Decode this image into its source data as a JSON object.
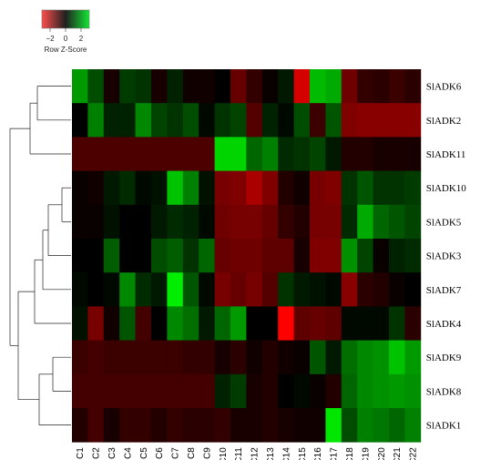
{
  "chart_data": {
    "type": "heatmap",
    "columns": [
      "C1",
      "C2",
      "C3",
      "C4",
      "C5",
      "C6",
      "C7",
      "C8",
      "C9",
      "C10",
      "C11",
      "C12",
      "C13",
      "C14",
      "C15",
      "C16",
      "C17",
      "C18",
      "C19",
      "C20",
      "C21",
      "C22"
    ],
    "rows": [
      "SlADK6",
      "SlADK2",
      "SlADK11",
      "SlADK10",
      "SlADK5",
      "SlADK3",
      "SlADK7",
      "SlADK4",
      "SlADK9",
      "SlADK8",
      "SlADK1"
    ],
    "values": [
      [
        1.8,
        0.9,
        -0.3,
        0.7,
        0.6,
        -0.3,
        0.4,
        -0.2,
        -0.2,
        0.0,
        -1.2,
        -0.6,
        -0.1,
        0.3,
        -2.5,
        2.2,
        2.0,
        -1.3,
        -0.6,
        -0.5,
        -0.7,
        -0.5
      ],
      [
        0.0,
        1.5,
        0.4,
        0.4,
        1.6,
        0.8,
        0.6,
        0.9,
        0.1,
        0.6,
        0.8,
        -1.0,
        0.4,
        0.1,
        0.9,
        -0.7,
        1.0,
        -1.5,
        -1.6,
        -1.6,
        -1.6,
        -1.6
      ],
      [
        -0.9,
        -0.9,
        -0.9,
        -0.9,
        -0.9,
        -0.9,
        -0.9,
        -0.9,
        -0.9,
        2.5,
        2.5,
        1.2,
        1.5,
        0.5,
        0.6,
        0.8,
        0.3,
        -0.4,
        -0.4,
        -0.3,
        -0.3,
        -0.3
      ],
      [
        -0.1,
        -0.2,
        0.3,
        0.5,
        0.1,
        0.2,
        2.3,
        1.5,
        0.2,
        -1.4,
        -1.5,
        -2.0,
        -1.5,
        -0.4,
        -0.2,
        -1.4,
        -1.5,
        0.6,
        1.0,
        0.6,
        0.6,
        0.7
      ],
      [
        -0.1,
        -0.1,
        0.2,
        0.0,
        0.0,
        0.3,
        0.5,
        0.4,
        0.1,
        -1.3,
        -1.4,
        -1.4,
        -1.2,
        -0.6,
        -0.4,
        -1.4,
        -1.4,
        0.5,
        2.0,
        1.2,
        1.0,
        0.8
      ],
      [
        0.0,
        0.0,
        1.1,
        0.0,
        0.0,
        0.9,
        1.1,
        0.6,
        1.2,
        -1.2,
        -1.3,
        -1.3,
        -1.1,
        -1.1,
        -0.3,
        -1.5,
        -1.5,
        1.7,
        0.8,
        -0.1,
        0.4,
        0.5
      ],
      [
        0.1,
        0.0,
        0.1,
        1.6,
        0.5,
        0.3,
        2.8,
        1.0,
        0.1,
        -1.4,
        -1.2,
        -1.4,
        -1.0,
        0.6,
        0.3,
        0.2,
        0.1,
        -1.6,
        -0.5,
        -0.4,
        -0.1,
        0.0
      ],
      [
        0.2,
        -1.4,
        -0.2,
        1.0,
        -0.8,
        0.0,
        1.6,
        1.3,
        0.3,
        1.2,
        1.8,
        0.0,
        0.0,
        -3.0,
        -1.1,
        -1.2,
        -1.1,
        0.1,
        0.1,
        0.1,
        0.6,
        -0.5
      ],
      [
        -0.7,
        -0.8,
        -0.7,
        -0.7,
        -0.7,
        -0.7,
        -0.7,
        -0.6,
        -0.6,
        -0.3,
        -0.5,
        -0.2,
        -0.4,
        -0.2,
        -0.1,
        1.0,
        0.3,
        1.3,
        1.6,
        1.7,
        2.3,
        1.8
      ],
      [
        -0.8,
        -0.8,
        -0.8,
        -0.8,
        -0.8,
        -0.8,
        -0.8,
        -0.8,
        -0.8,
        0.4,
        0.7,
        -0.3,
        -0.4,
        0.0,
        0.1,
        -0.1,
        -0.4,
        1.2,
        1.6,
        1.7,
        1.8,
        1.7
      ],
      [
        -0.4,
        -0.8,
        -0.3,
        -0.6,
        -0.6,
        -0.4,
        -0.6,
        -0.5,
        -0.5,
        -0.6,
        -0.3,
        -0.3,
        -0.4,
        -0.3,
        -0.2,
        -0.2,
        2.7,
        0.9,
        1.5,
        1.4,
        1.2,
        1.5
      ]
    ],
    "color_key": {
      "title": "Row Z-Score",
      "min": -3,
      "max": 3,
      "ticks": [
        "−2",
        "0",
        "2"
      ],
      "low_color": "#ff0000",
      "mid_color": "#000000",
      "high_color": "#00ff00"
    },
    "row_dendrogram": {
      "merges": [
        [
          "SlADK10",
          "SlADK5"
        ],
        [
          "SlADK9",
          "SlADK8"
        ],
        [
          "SlADK6",
          "SlADK2"
        ],
        [
          "SlADK10+SlADK5",
          "SlADK3"
        ],
        [
          "SlADK10+SlADK5+SlADK3",
          "SlADK7"
        ],
        [
          "SlADK9+SlADK8",
          "SlADK1"
        ],
        [
          "SlADK10+SlADK5+SlADK3+SlADK7",
          "SlADK4"
        ],
        [
          "SlADK6+SlADK2",
          "SlADK11"
        ],
        [
          "SlADK10..SlADK4",
          "SlADK9+SlADK8+SlADK1"
        ],
        [
          "SlADK6+SlADK2+SlADK11",
          "SlADK10..SlADK1"
        ]
      ]
    }
  }
}
